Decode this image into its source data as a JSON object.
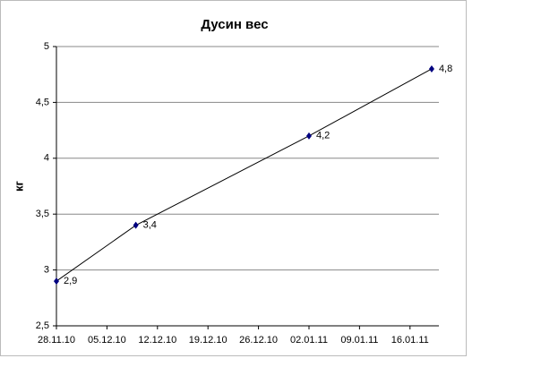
{
  "chart_data": {
    "type": "line",
    "title": "Дусин вес",
    "y_label": "кг",
    "x": [
      "28.11.10",
      "09.12.10",
      "02.01.11",
      "19.01.11"
    ],
    "series": [
      {
        "name": "вес",
        "color": "#000080",
        "line_color": "#000000",
        "values": [
          2.9,
          3.4,
          4.2,
          4.8
        ],
        "value_labels": [
          "2,9",
          "3,4",
          "4,2",
          "4,8"
        ]
      }
    ],
    "xlim": [
      "28.11.10",
      "20.01.11"
    ],
    "xticks": [
      "28.11.10",
      "05.12.10",
      "12.12.10",
      "19.12.10",
      "26.12.10",
      "02.01.11",
      "09.01.11",
      "16.01.11"
    ],
    "ylim": [
      2.5,
      5
    ],
    "yticks": [
      {
        "value": 2.5,
        "label": "2,5"
      },
      3,
      {
        "value": 3.5,
        "label": "3,5"
      },
      4,
      {
        "value": 4.5,
        "label": "4,5"
      },
      5
    ],
    "grid": true
  }
}
